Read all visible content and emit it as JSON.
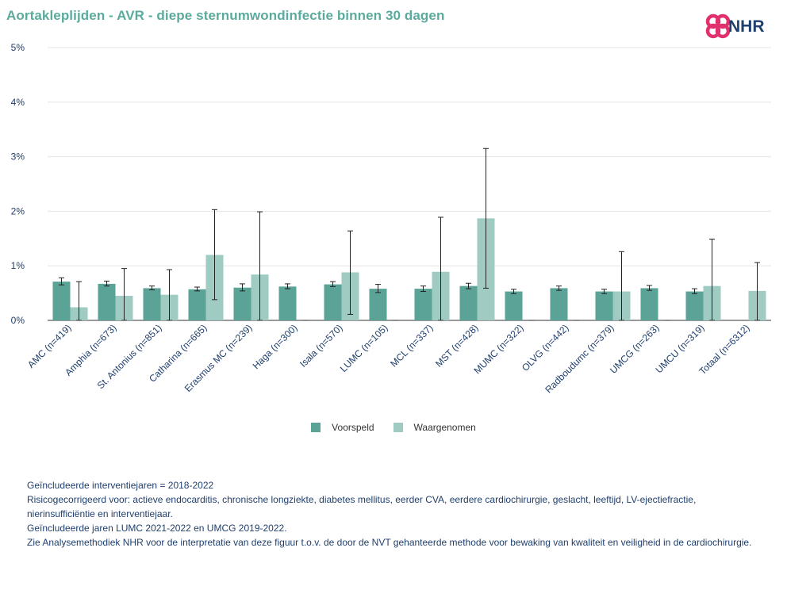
{
  "header": {
    "title": "Aortakleplijden - AVR - diepe sternumwondinfectie binnen 30 dagen",
    "logo_text": "NHR"
  },
  "colors": {
    "voorspeld": "#5aa396",
    "waargenomen": "#9fcbc3",
    "title": "#5aab9e",
    "text_dark": "#1f3f6e",
    "logo_pink": "#e0306e"
  },
  "legend": {
    "placement": "bottom-center",
    "items": [
      "Voorspeld",
      "Waargenomen"
    ]
  },
  "chart_data": {
    "type": "bar",
    "title": "Aortakleplijden - AVR - diepe sternumwondinfectie binnen 30 dagen",
    "xlabel": "",
    "ylabel": "",
    "ylim": [
      0,
      5
    ],
    "y_ticks": [
      "0%",
      "1%",
      "2%",
      "3%",
      "4%",
      "5%"
    ],
    "grid": true,
    "categories": [
      "AMC (n=419)",
      "Amphia (n=673)",
      "St. Antonius (n=851)",
      "Catharina (n=665)",
      "Erasmus MC (n=239)",
      "Haga (n=300)",
      "Isala (n=570)",
      "LUMC (n=105)",
      "MCL (n=337)",
      "MST (n=428)",
      "MUMC (n=322)",
      "OLVG (n=442)",
      "Radboudumc (n=379)",
      "UMCG (n=263)",
      "UMCU (n=319)",
      "Totaal (n=6312)"
    ],
    "series": [
      {
        "name": "Voorspeld",
        "values": [
          0.71,
          0.67,
          0.59,
          0.57,
          0.6,
          0.62,
          0.66,
          0.58,
          0.58,
          0.63,
          0.53,
          0.59,
          0.53,
          0.59,
          0.53,
          null
        ],
        "ci_low": [
          0.65,
          0.63,
          0.56,
          0.54,
          0.54,
          0.58,
          0.62,
          0.51,
          0.53,
          0.58,
          0.49,
          0.55,
          0.49,
          0.55,
          0.49,
          null
        ],
        "ci_high": [
          0.78,
          0.72,
          0.63,
          0.61,
          0.67,
          0.67,
          0.71,
          0.66,
          0.63,
          0.68,
          0.57,
          0.63,
          0.57,
          0.64,
          0.58,
          null
        ]
      },
      {
        "name": "Waargenomen",
        "values": [
          0.24,
          0.45,
          0.47,
          1.2,
          0.84,
          0.0,
          0.88,
          0.0,
          0.89,
          1.87,
          0.0,
          0.0,
          0.53,
          0.0,
          0.63,
          0.54
        ],
        "ci_low": [
          0.0,
          0.0,
          0.0,
          0.38,
          0.0,
          0.0,
          0.11,
          0.0,
          0.0,
          0.59,
          0.0,
          0.0,
          0.0,
          0.0,
          0.0,
          0.0
        ],
        "ci_high": [
          0.71,
          0.95,
          0.93,
          2.03,
          1.99,
          0.0,
          1.64,
          0.0,
          1.89,
          3.15,
          0.0,
          0.0,
          1.26,
          0.0,
          1.49,
          1.06
        ]
      }
    ]
  },
  "notes": [
    "Geïncludeerde interventiejaren = 2018-2022",
    "Risicogecorrigeerd voor: actieve endocarditis, chronische longziekte, diabetes mellitus, eerder CVA, eerdere cardiochirurgie, geslacht, leeftijd, LV-ejectiefractie, nierinsufficiëntie en interventiejaar.",
    "Geïncludeerde jaren LUMC 2021-2022 en UMCG 2019-2022.",
    "Zie Analysemethodiek NHR voor de interpretatie van deze figuur t.o.v. de door de NVT gehanteerde methode voor bewaking van kwaliteit en veiligheid in de cardiochirurgie."
  ]
}
